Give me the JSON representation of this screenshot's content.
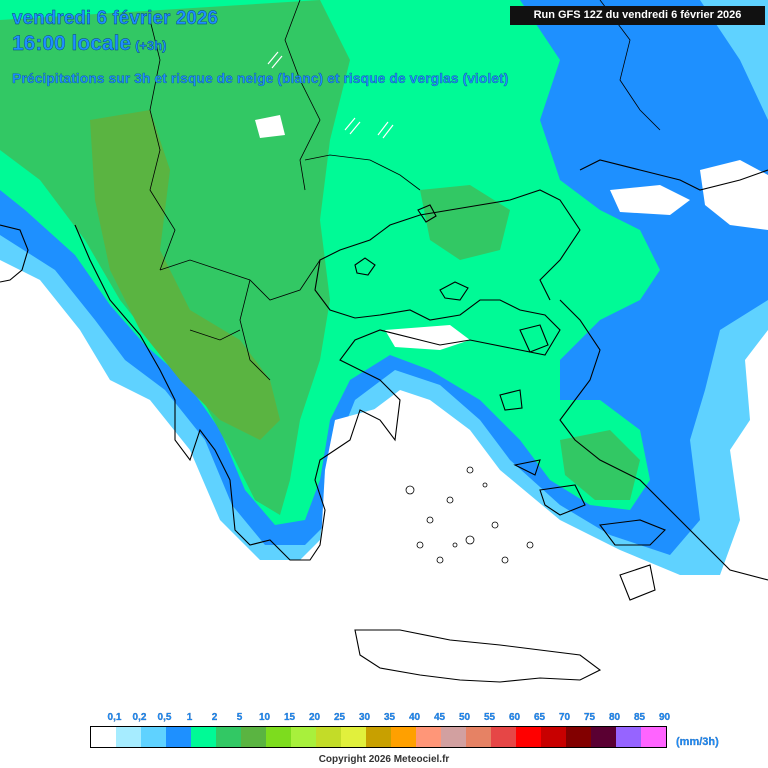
{
  "header": {
    "date": "vendredi 6 février 2026",
    "time": "16:00 locale",
    "offset": "(+3h)",
    "description": "Précipitations sur 3h et risque de neige (blanc) et risque de verglas (violet)",
    "run": "Run GFS 12Z du vendredi 6 février 2026"
  },
  "legend": {
    "unit": "(mm/3h)",
    "labels": [
      "0,1",
      "0,2",
      "0,5",
      "1",
      "2",
      "5",
      "10",
      "15",
      "20",
      "25",
      "30",
      "35",
      "40",
      "45",
      "50",
      "55",
      "60",
      "65",
      "70",
      "75",
      "80",
      "85",
      "90"
    ],
    "colors": [
      "#ffffff",
      "#a6ecff",
      "#5fd2ff",
      "#1e90ff",
      "#00fa96",
      "#32c864",
      "#5ab441",
      "#7ddc1e",
      "#a8f03c",
      "#c3dc28",
      "#e1f03c",
      "#c8a000",
      "#ffa000",
      "#ff9678",
      "#d2a0a0",
      "#e68264",
      "#e64646",
      "#ff0000",
      "#c80000",
      "#820000",
      "#5a0032",
      "#9664ff",
      "#ff64ff"
    ]
  },
  "copyright": "Copyright 2026 Meteociel.fr"
}
